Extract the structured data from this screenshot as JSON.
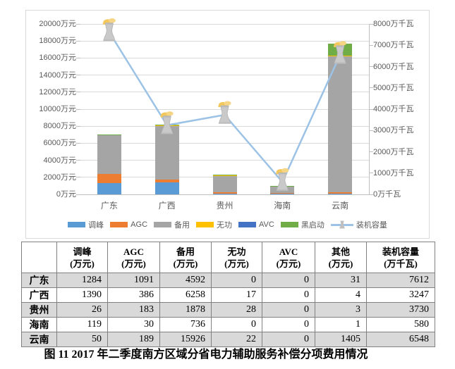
{
  "caption": "图 11  2017 年二季度南方区域分省电力辅助服务补偿分项费用情况",
  "chart_data": {
    "type": "bar",
    "subtype": "stacked-bar-with-line",
    "categories": [
      "广东",
      "广西",
      "贵州",
      "海南",
      "云南"
    ],
    "series": [
      {
        "name": "调峰",
        "type": "bar",
        "color": "#5B9BD5",
        "values": [
          1284,
          1390,
          26,
          119,
          50
        ]
      },
      {
        "name": "AGC",
        "type": "bar",
        "color": "#ED7D31",
        "values": [
          1091,
          386,
          183,
          30,
          189
        ]
      },
      {
        "name": "备用",
        "type": "bar",
        "color": "#A5A5A5",
        "values": [
          4592,
          6258,
          1878,
          736,
          15926
        ]
      },
      {
        "name": "无功",
        "type": "bar",
        "color": "#FFC000",
        "values": [
          0,
          17,
          28,
          0,
          22
        ]
      },
      {
        "name": "AVC",
        "type": "bar",
        "color": "#4472C4",
        "values": [
          0,
          0,
          0,
          0,
          0
        ]
      },
      {
        "name": "黑启动",
        "type": "bar",
        "color": "#70AD47",
        "values": [
          31,
          4,
          3,
          1,
          1405
        ]
      },
      {
        "name": "装机容量",
        "type": "line",
        "color": "#9CC2E5",
        "values": [
          7612,
          3247,
          3730,
          580,
          6548
        ]
      }
    ],
    "left_axis": {
      "unit": "万元",
      "min": 0,
      "max": 20000,
      "step": 2000,
      "labels": [
        "0万元",
        "2000万元",
        "4000万元",
        "6000万元",
        "8000万元",
        "10000万元",
        "12000万元",
        "14000万元",
        "16000万元",
        "18000万元",
        "20000万元"
      ]
    },
    "right_axis": {
      "unit": "万千瓦",
      "min": 0,
      "max": 8000,
      "step": 1000,
      "labels": [
        "0万千瓦",
        "1000万千瓦",
        "2000万千瓦",
        "3000万千瓦",
        "4000万千瓦",
        "5000万千瓦",
        "6000万千瓦",
        "7000万千瓦",
        "8000万千瓦"
      ]
    },
    "grid": true,
    "legend_position": "bottom",
    "legend": [
      {
        "label": "调峰",
        "color": "#5B9BD5",
        "kind": "swatch"
      },
      {
        "label": "AGC",
        "color": "#ED7D31",
        "kind": "swatch"
      },
      {
        "label": "备用",
        "color": "#A5A5A5",
        "kind": "swatch"
      },
      {
        "label": "无功",
        "color": "#FFC000",
        "kind": "swatch"
      },
      {
        "label": "AVC",
        "color": "#4472C4",
        "kind": "swatch"
      },
      {
        "label": "黑启动",
        "color": "#70AD47",
        "kind": "swatch"
      },
      {
        "label": "装机容量",
        "color": "#9CC2E5",
        "kind": "line"
      }
    ],
    "marker": {
      "shape": "cooling-tower-with-smoke",
      "body_color": "#C9C9C9",
      "rim_color": "#B3B3B3",
      "smoke_color": "#F2C75C"
    }
  },
  "table": {
    "header": [
      {
        "line1": "",
        "line2": ""
      },
      {
        "line1": "调峰",
        "line2": "(万元)"
      },
      {
        "line1": "AGC",
        "line2": "(万元)"
      },
      {
        "line1": "备用",
        "line2": "(万元)"
      },
      {
        "line1": "无功",
        "line2": "(万元)"
      },
      {
        "line1": "AVC",
        "line2": "(万元)"
      },
      {
        "line1": "其他",
        "line2": "(万元)"
      },
      {
        "line1": "装机容量",
        "line2": "(万千瓦)"
      }
    ],
    "rows": [
      {
        "province": "广东",
        "values": [
          "1284",
          "1091",
          "4592",
          "0",
          "0",
          "31",
          "7612"
        ]
      },
      {
        "province": "广西",
        "values": [
          "1390",
          "386",
          "6258",
          "17",
          "0",
          "4",
          "3247"
        ]
      },
      {
        "province": "贵州",
        "values": [
          "26",
          "183",
          "1878",
          "28",
          "0",
          "3",
          "3730"
        ]
      },
      {
        "province": "海南",
        "values": [
          "119",
          "30",
          "736",
          "0",
          "0",
          "1",
          "580"
        ]
      },
      {
        "province": "云南",
        "values": [
          "50",
          "189",
          "15926",
          "22",
          "0",
          "1405",
          "6548"
        ]
      }
    ],
    "stripe_color": "#D9D9D9"
  }
}
